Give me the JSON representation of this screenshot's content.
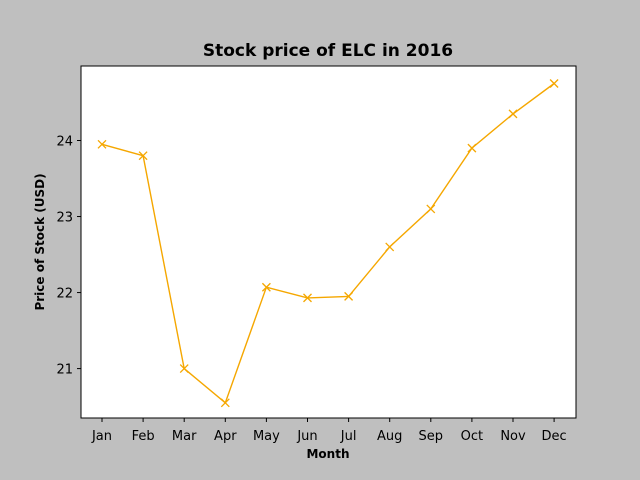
{
  "chart_data": {
    "type": "line",
    "title": "Stock price of ELC in 2016",
    "xlabel": "Month",
    "ylabel": "Price of Stock (USD)",
    "categories": [
      "Jan",
      "Feb",
      "Mar",
      "Apr",
      "May",
      "Jun",
      "Jul",
      "Aug",
      "Sep",
      "Oct",
      "Nov",
      "Dec"
    ],
    "series": [
      {
        "values": [
          23.95,
          23.8,
          21.0,
          20.55,
          22.07,
          21.93,
          21.95,
          22.6,
          23.1,
          23.9,
          24.35,
          24.75
        ],
        "color": "#f5a700",
        "marker": "x"
      }
    ],
    "yticks": [
      21,
      22,
      23,
      24
    ],
    "ylim": [
      20.35,
      24.98
    ],
    "grid": false,
    "legend": "none",
    "background_color": "#bfbfbf",
    "plot_background_color": "#ffffff"
  }
}
